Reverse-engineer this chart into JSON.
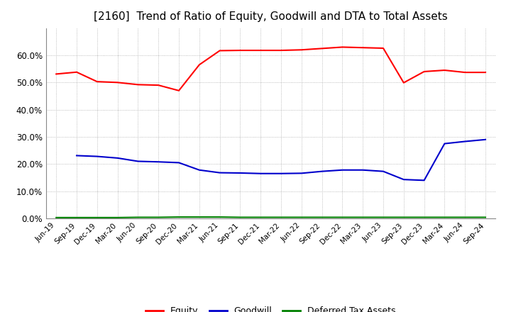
{
  "title": "[2160]  Trend of Ratio of Equity, Goodwill and DTA to Total Assets",
  "x_labels": [
    "Jun-19",
    "Sep-19",
    "Dec-19",
    "Mar-20",
    "Jun-20",
    "Sep-20",
    "Dec-20",
    "Mar-21",
    "Jun-21",
    "Sep-21",
    "Dec-21",
    "Mar-22",
    "Jun-22",
    "Sep-22",
    "Dec-22",
    "Mar-23",
    "Jun-23",
    "Sep-23",
    "Dec-23",
    "Mar-24",
    "Jun-24",
    "Sep-24"
  ],
  "equity": [
    0.531,
    0.538,
    0.503,
    0.5,
    0.492,
    0.49,
    0.47,
    0.565,
    0.617,
    0.618,
    0.618,
    0.618,
    0.62,
    0.625,
    0.63,
    0.628,
    0.626,
    0.499,
    0.54,
    0.545,
    0.537,
    0.537
  ],
  "goodwill": [
    null,
    0.231,
    0.228,
    0.222,
    0.21,
    0.208,
    0.205,
    0.178,
    0.168,
    0.167,
    0.165,
    0.165,
    0.166,
    0.173,
    0.178,
    0.178,
    0.173,
    0.143,
    0.14,
    0.275,
    0.283,
    0.29
  ],
  "dta": [
    0.003,
    0.003,
    0.003,
    0.003,
    0.004,
    0.004,
    0.005,
    0.005,
    0.005,
    0.004,
    0.004,
    0.004,
    0.004,
    0.004,
    0.004,
    0.004,
    0.004,
    0.004,
    0.004,
    0.004,
    0.004,
    0.004
  ],
  "equity_color": "#ff0000",
  "goodwill_color": "#0000cc",
  "dta_color": "#008000",
  "ylim": [
    0.0,
    0.7
  ],
  "yticks": [
    0.0,
    0.1,
    0.2,
    0.3,
    0.4,
    0.5,
    0.6
  ],
  "background_color": "#ffffff",
  "grid_color": "#aaaaaa",
  "title_fontsize": 11,
  "line_width": 1.5
}
